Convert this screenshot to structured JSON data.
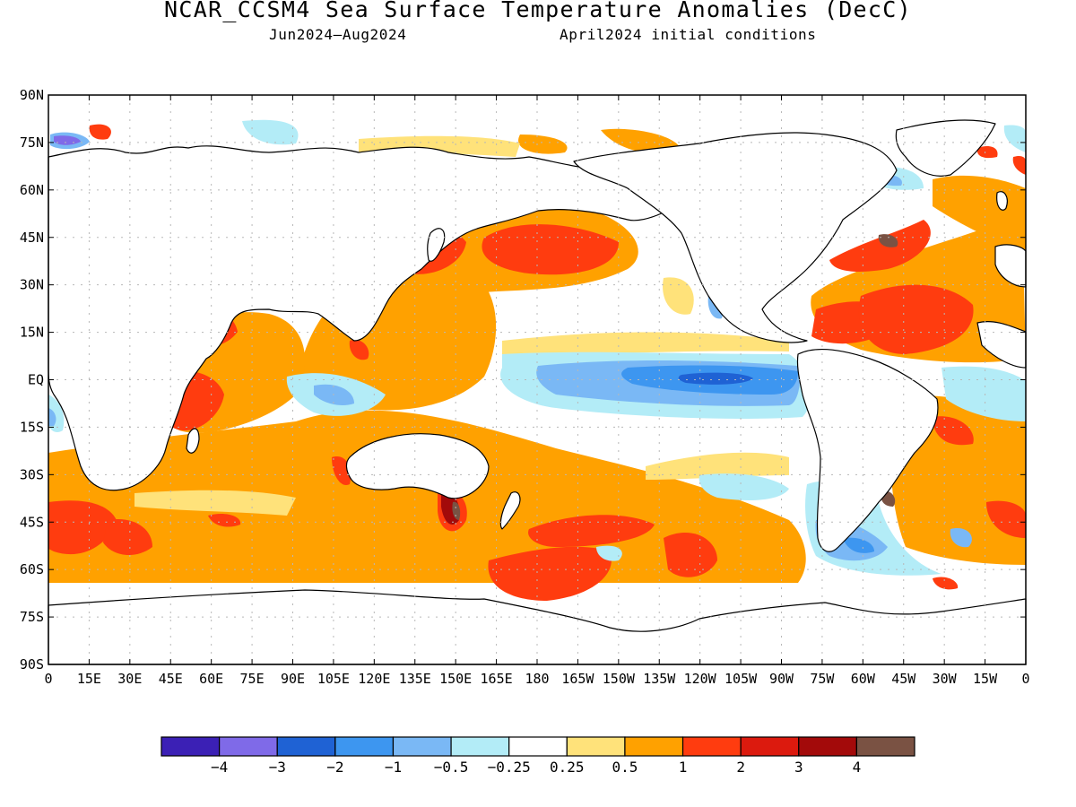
{
  "header": {
    "title": "NCAR_CCSM4 Sea Surface Temperature Anomalies (DecC)",
    "subtitle_left": "Jun2024—Aug2024",
    "subtitle_right": "April2024 initial conditions"
  },
  "axes": {
    "y_ticks": [
      "90N",
      "75N",
      "60N",
      "45N",
      "30N",
      "15N",
      "EQ",
      "15S",
      "30S",
      "45S",
      "60S",
      "75S",
      "90S"
    ],
    "x_ticks": [
      "0",
      "15E",
      "30E",
      "45E",
      "60E",
      "75E",
      "90E",
      "105E",
      "120E",
      "135E",
      "150E",
      "165E",
      "180",
      "165W",
      "150W",
      "135W",
      "120W",
      "105W",
      "90W",
      "75W",
      "60W",
      "45W",
      "30W",
      "15W",
      "0"
    ],
    "grid": true
  },
  "colorbar": {
    "colors": [
      "#3b20b5",
      "#7f6ae8",
      "#1f62d4",
      "#3d96f0",
      "#7ab8f5",
      "#b3ecf7",
      "#ffffff",
      "#ffe27a",
      "#ffa100",
      "#ff3c0f",
      "#dc1a0e",
      "#a30a0a",
      "#7a5243"
    ],
    "labels": [
      "−4",
      "−3",
      "−2",
      "−1",
      "−0.5",
      "−0.25",
      "0.25",
      "0.5",
      "1",
      "2",
      "3",
      "4"
    ]
  }
}
